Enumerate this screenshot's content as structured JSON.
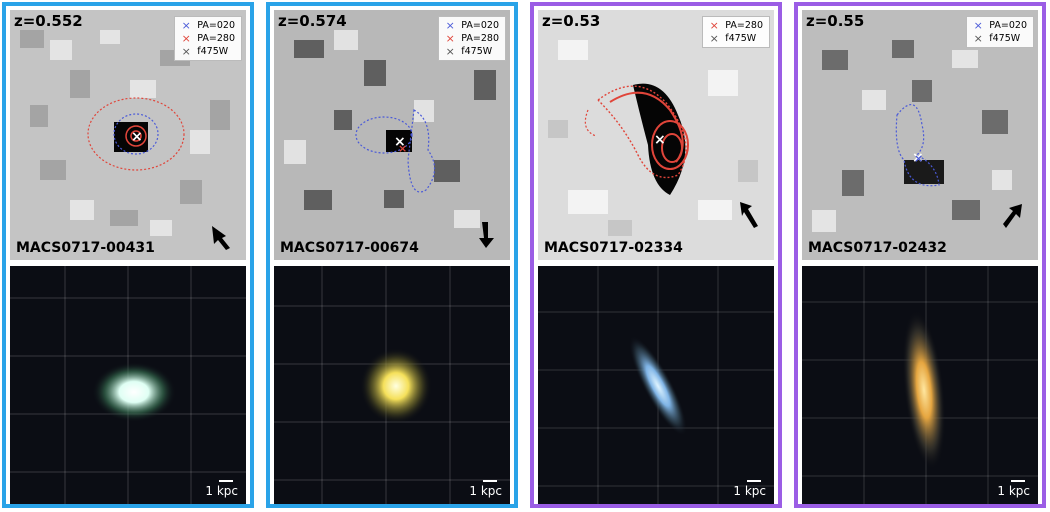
{
  "panels": [
    {
      "redshift": "z=0.552",
      "name": "MACS0717-00431",
      "legend": [
        {
          "text": "PA=020",
          "color": "#4a5ad8"
        },
        {
          "text": "PA=280",
          "color": "#e0453a"
        },
        {
          "text": "f475W",
          "color": "#555555"
        }
      ],
      "scale": "1 kpc",
      "border_color": "#2aa3e8"
    },
    {
      "redshift": "z=0.574",
      "name": "MACS0717-00674",
      "legend": [
        {
          "text": "PA=020",
          "color": "#4a5ad8"
        },
        {
          "text": "PA=280",
          "color": "#e0453a"
        },
        {
          "text": "f475W",
          "color": "#555555"
        }
      ],
      "scale": "1 kpc",
      "border_color": "#2aa3e8"
    },
    {
      "redshift": "z=0.53",
      "name": "MACS0717-02334",
      "legend": [
        {
          "text": "PA=280",
          "color": "#e0453a"
        },
        {
          "text": "f475W",
          "color": "#555555"
        }
      ],
      "scale": "1 kpc",
      "border_color": "#9b5de5"
    },
    {
      "redshift": "z=0.55",
      "name": "MACS0717-02432",
      "legend": [
        {
          "text": "PA=020",
          "color": "#4a5ad8"
        },
        {
          "text": "f475W",
          "color": "#555555"
        }
      ],
      "scale": "1 kpc",
      "border_color": "#9b5de5"
    }
  ]
}
